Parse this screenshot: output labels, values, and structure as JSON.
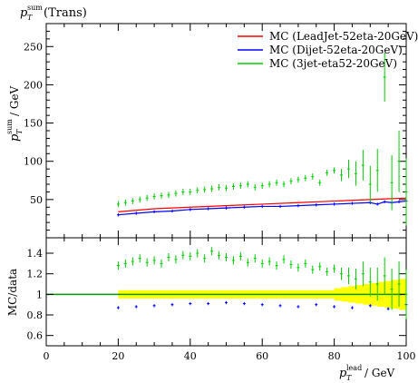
{
  "plot_title": "(Trans)",
  "chart_data": [
    {
      "type": "scatter",
      "title": "(Trans)",
      "ylabel": "p_T^sum / GeV",
      "xlabel": "p_T^lead / GeV",
      "xlim": [
        0,
        100
      ],
      "ylim": [
        0,
        280
      ],
      "yticks": [
        50,
        100,
        150,
        200,
        250
      ],
      "legend_position": "top-right",
      "series": [
        {
          "name": "MC (LeadJet-52eta-20GeV)",
          "color": "#ff0000",
          "x": [
            20,
            30,
            40,
            50,
            60,
            70,
            80,
            90,
            95,
            100
          ],
          "y": [
            34,
            38,
            40,
            42,
            44,
            46,
            48,
            50,
            51,
            52
          ]
        },
        {
          "name": "MC (Dijet-52eta-20GeV)",
          "color": "#0000ff",
          "x": [
            20,
            25,
            30,
            35,
            40,
            45,
            50,
            55,
            60,
            65,
            70,
            75,
            80,
            85,
            90,
            92,
            94,
            96,
            98,
            100
          ],
          "y": [
            30,
            32,
            34,
            35,
            37,
            38,
            39,
            40,
            41,
            41,
            42,
            43,
            44,
            45,
            46,
            44,
            47,
            46,
            47,
            48
          ]
        },
        {
          "name": "MC (3jet-eta52-20GeV)",
          "color": "#00cc00",
          "x": [
            20,
            22,
            24,
            26,
            28,
            30,
            32,
            34,
            36,
            38,
            40,
            42,
            44,
            46,
            48,
            50,
            52,
            54,
            56,
            58,
            60,
            62,
            64,
            66,
            68,
            70,
            72,
            74,
            76,
            78,
            80,
            82,
            84,
            86,
            88,
            90,
            92,
            94,
            96,
            98,
            100
          ],
          "y": [
            44,
            46,
            48,
            50,
            52,
            54,
            55,
            56,
            58,
            60,
            60,
            62,
            63,
            64,
            66,
            65,
            67,
            68,
            70,
            66,
            68,
            70,
            72,
            70,
            74,
            76,
            78,
            80,
            72,
            85,
            88,
            82,
            90,
            84,
            95,
            70,
            88,
            210,
            72,
            100,
            60
          ]
        }
      ]
    },
    {
      "type": "scatter",
      "ylabel": "MC/data",
      "xlabel": "p_T^lead / GeV",
      "xlim": [
        0,
        100
      ],
      "ylim": [
        0.5,
        1.55
      ],
      "yticks": [
        0.6,
        0.8,
        1,
        1.2,
        1.4
      ],
      "xticks": [
        0,
        20,
        40,
        60,
        80,
        100
      ],
      "series": [
        {
          "name": "MC (LeadJet-52eta-20GeV)",
          "color": "#ff0000",
          "x": [
            20,
            40,
            60,
            80,
            100
          ],
          "y": [
            1.0,
            1.0,
            1.0,
            1.0,
            1.0
          ]
        },
        {
          "name": "MC (Dijet-52eta-20GeV)",
          "color": "#0000ff",
          "x": [
            20,
            25,
            30,
            35,
            40,
            45,
            50,
            55,
            60,
            65,
            70,
            75,
            80,
            85,
            90,
            95,
            100
          ],
          "y": [
            0.87,
            0.88,
            0.89,
            0.9,
            0.91,
            0.91,
            0.92,
            0.91,
            0.9,
            0.89,
            0.88,
            0.9,
            0.88,
            0.87,
            0.89,
            0.86,
            0.9
          ]
        },
        {
          "name": "MC (3jet-eta52-20GeV)",
          "color": "#00cc00",
          "x": [
            20,
            22,
            24,
            26,
            28,
            30,
            32,
            34,
            36,
            38,
            40,
            42,
            44,
            46,
            48,
            50,
            52,
            54,
            56,
            58,
            60,
            62,
            64,
            66,
            68,
            70,
            72,
            74,
            76,
            78,
            80,
            82,
            84,
            86,
            88,
            90,
            92,
            94,
            96,
            98,
            100
          ],
          "y": [
            1.28,
            1.3,
            1.32,
            1.35,
            1.31,
            1.33,
            1.3,
            1.36,
            1.34,
            1.38,
            1.37,
            1.4,
            1.35,
            1.42,
            1.38,
            1.36,
            1.33,
            1.37,
            1.31,
            1.35,
            1.3,
            1.32,
            1.28,
            1.34,
            1.29,
            1.26,
            1.3,
            1.24,
            1.27,
            1.22,
            1.25,
            1.2,
            1.18,
            1.15,
            1.2,
            1.12,
            1.1,
            1.18,
            1.05,
            1.1,
            1.0
          ]
        }
      ],
      "uncertainty_band_color": "#ffff00"
    }
  ],
  "legend": [
    {
      "label": "MC (LeadJet-52eta-20GeV)",
      "color": "#ff0000"
    },
    {
      "label": "MC (Dijet-52eta-20GeV)",
      "color": "#0000ff"
    },
    {
      "label": "MC (3jet-eta52-20GeV)",
      "color": "#00cc00"
    }
  ],
  "axes": {
    "main_ylabel_text": "p",
    "main_ylabel_sub": "T",
    "main_ylabel_sup": "sum",
    "main_ylabel_unit": "/ GeV",
    "ratio_ylabel": "MC/data",
    "xlabel_text": "p",
    "xlabel_sub": "T",
    "xlabel_sup": "lead",
    "xlabel_unit": "/ GeV"
  }
}
